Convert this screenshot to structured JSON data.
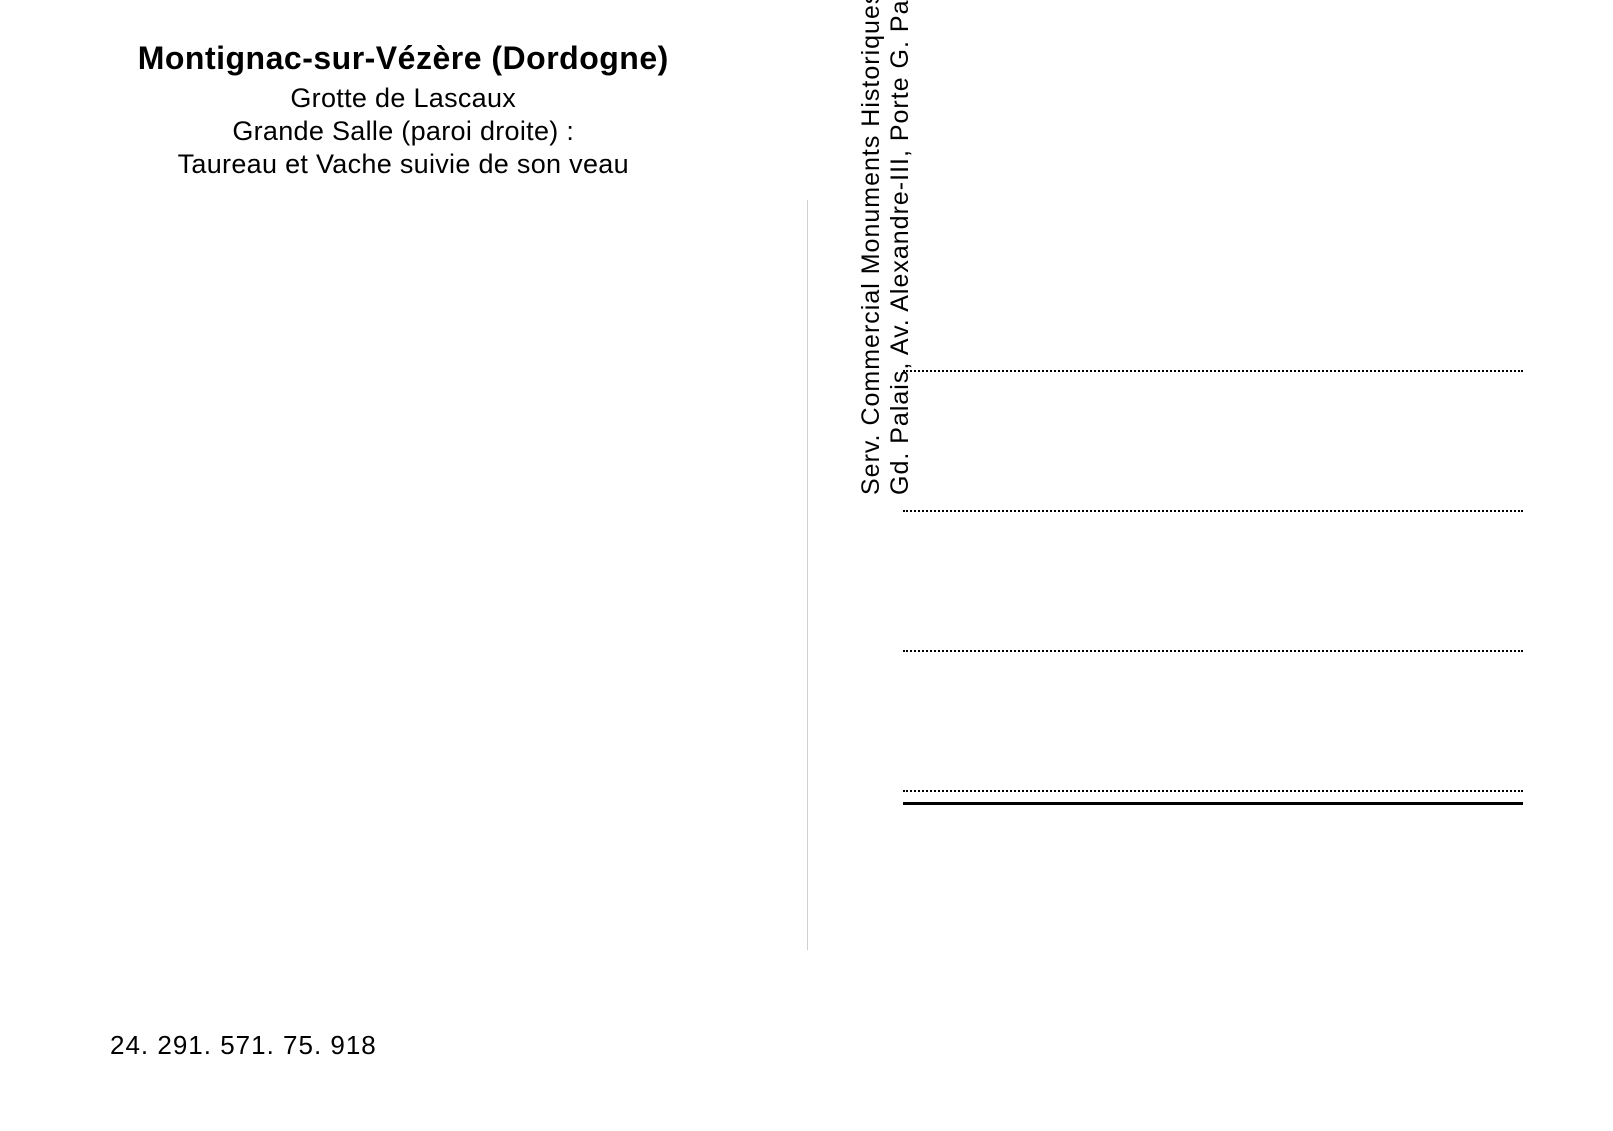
{
  "header": {
    "title": "Montignac-sur-Vézère (Dordogne)",
    "line1": "Grotte de Lascaux",
    "line2": "Grande Salle (paroi droite) :",
    "line3": "Taureau et Vache suivie de son veau"
  },
  "reference": "24. 291. 571. 75. 918",
  "publisher": {
    "line1": "Serv. Commercial Monuments Historiques",
    "line2": "Gd. Palais, Av. Alexandre-III, Porte G. Paris"
  },
  "styling": {
    "title_fontsize": 32,
    "subtitle_fontsize": 27,
    "reference_fontsize": 26,
    "publisher_fontsize": 25,
    "background_color": "#ffffff",
    "text_color": "#000000",
    "divider_color": "#d0d0d0",
    "address_line_count": 4,
    "address_line_width": 620,
    "address_line_spacing": 138,
    "dotted_line_weight": 2,
    "solid_underline_weight": 3
  }
}
